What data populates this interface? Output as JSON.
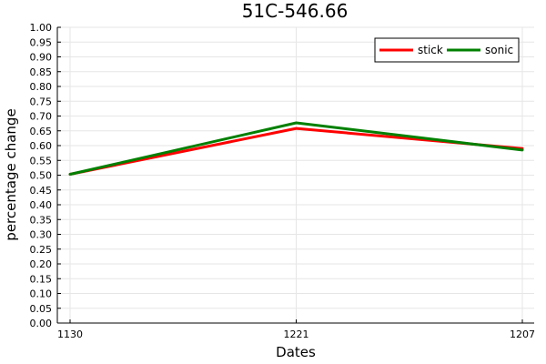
{
  "chart_data": {
    "type": "line",
    "title": "51C-546.66",
    "xlabel": "Dates",
    "ylabel": "percentage change",
    "categories": [
      "1130",
      "1221",
      "1207"
    ],
    "ylim": [
      0,
      1
    ],
    "yticks": [
      "0.00",
      "0.05",
      "0.10",
      "0.15",
      "0.20",
      "0.25",
      "0.30",
      "0.35",
      "0.40",
      "0.45",
      "0.50",
      "0.55",
      "0.60",
      "0.65",
      "0.70",
      "0.75",
      "0.80",
      "0.85",
      "0.90",
      "0.95",
      "1.00"
    ],
    "grid": true,
    "legend_position": "top-right",
    "series": [
      {
        "name": "stick",
        "color": "#ff0000",
        "values": [
          0.503,
          0.658,
          0.59
        ]
      },
      {
        "name": "sonic",
        "color": "#008000",
        "values": [
          0.503,
          0.677,
          0.585
        ]
      }
    ]
  }
}
